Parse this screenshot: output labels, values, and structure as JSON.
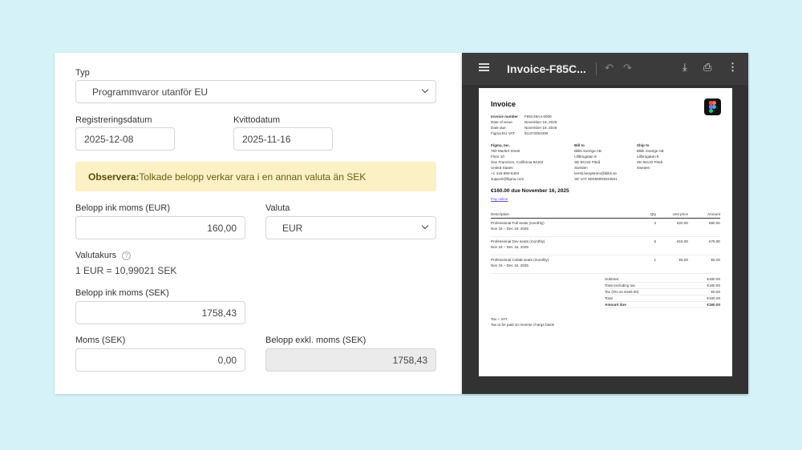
{
  "form": {
    "typ": {
      "label": "Typ",
      "value": "Programmvaror utanför EU"
    },
    "registreringsdatum": {
      "label": "Registreringsdatum",
      "value": "2025-12-08"
    },
    "kvittodatum": {
      "label": "Kvittodatum",
      "value": "2025-11-16"
    },
    "notice": {
      "prefix": "Observera:",
      "text": " Tolkade belopp verkar vara i en annan valuta än SEK"
    },
    "belopp_eur": {
      "label": "Belopp ink moms (EUR)",
      "value": "160,00"
    },
    "valuta": {
      "label": "Valuta",
      "value": "EUR"
    },
    "valutakurs": {
      "label": "Valutakurs",
      "help": "?",
      "value": "1 EUR = 10,99021 SEK"
    },
    "belopp_sek": {
      "label": "Belopp ink moms (SEK)",
      "value": "1758,43"
    },
    "moms": {
      "label": "Moms (SEK)",
      "value": "0,00"
    },
    "belopp_exkl": {
      "label": "Belopp exkl. moms (SEK)",
      "value": "1758,43"
    }
  },
  "viewer": {
    "title": "Invoice-F85C...",
    "icons": [
      "menu-icon",
      "undo-icon",
      "redo-icon",
      "download-icon",
      "print-icon",
      "more-icon"
    ],
    "invoice": {
      "heading": "Invoice",
      "meta": [
        [
          "Invoice number",
          "F85C49A4-0008"
        ],
        [
          "Date of issue",
          "November 16, 2025"
        ],
        [
          "Date due",
          "November 16, 2025"
        ],
        [
          "Figma EU VAT",
          "EU372054390"
        ]
      ],
      "from": [
        "Figma, Inc.",
        "760 Market Street",
        "Floor 10",
        "San Francisco, California 94102",
        "United States",
        "+1 415-890-5404",
        "support@figma.com"
      ],
      "bill_to": [
        "Bill to",
        "Blikk Sverige AB",
        "Lillbrogatan 8",
        "SE-94132 Piteå",
        "Sweden",
        "kersti.bergstrom@blikk.se",
        "SE VAT SE559093834501"
      ],
      "ship_to": [
        "Ship to",
        "Blikk Sverige AB",
        "Lillbrogatan 8",
        "SE-94132 Piteå",
        "Sweden"
      ],
      "due": "€160.00 due November 16, 2025",
      "pay_online": "Pay online",
      "columns": [
        "Description",
        "Qty",
        "Unit price",
        "Amount"
      ],
      "items": [
        {
          "desc": "Professional Full seats (monthly)",
          "period": "Nov 16 – Dec 16, 2025",
          "qty": "4",
          "unit": "€20.00",
          "amount": "€80.00"
        },
        {
          "desc": "Professional Dev seats (monthly)",
          "period": "Nov 16 – Dec 16, 2025",
          "qty": "5",
          "unit": "€15.00",
          "amount": "€75.00"
        },
        {
          "desc": "Professional Collab seats (monthly)",
          "period": "Nov 16 – Dec 16, 2025",
          "qty": "1",
          "unit": "€5.00",
          "amount": "€5.00"
        }
      ],
      "totals": [
        [
          "Subtotal",
          "€160.00"
        ],
        [
          "Total excluding tax",
          "€160.00"
        ],
        [
          "Tax (0% on €160.00)",
          "€0.00"
        ],
        [
          "Total",
          "€160.00"
        ],
        [
          "Amount due",
          "€160.00"
        ]
      ],
      "notes": [
        "Tax = VAT",
        "Tax to be paid on reverse charge basis"
      ]
    }
  }
}
